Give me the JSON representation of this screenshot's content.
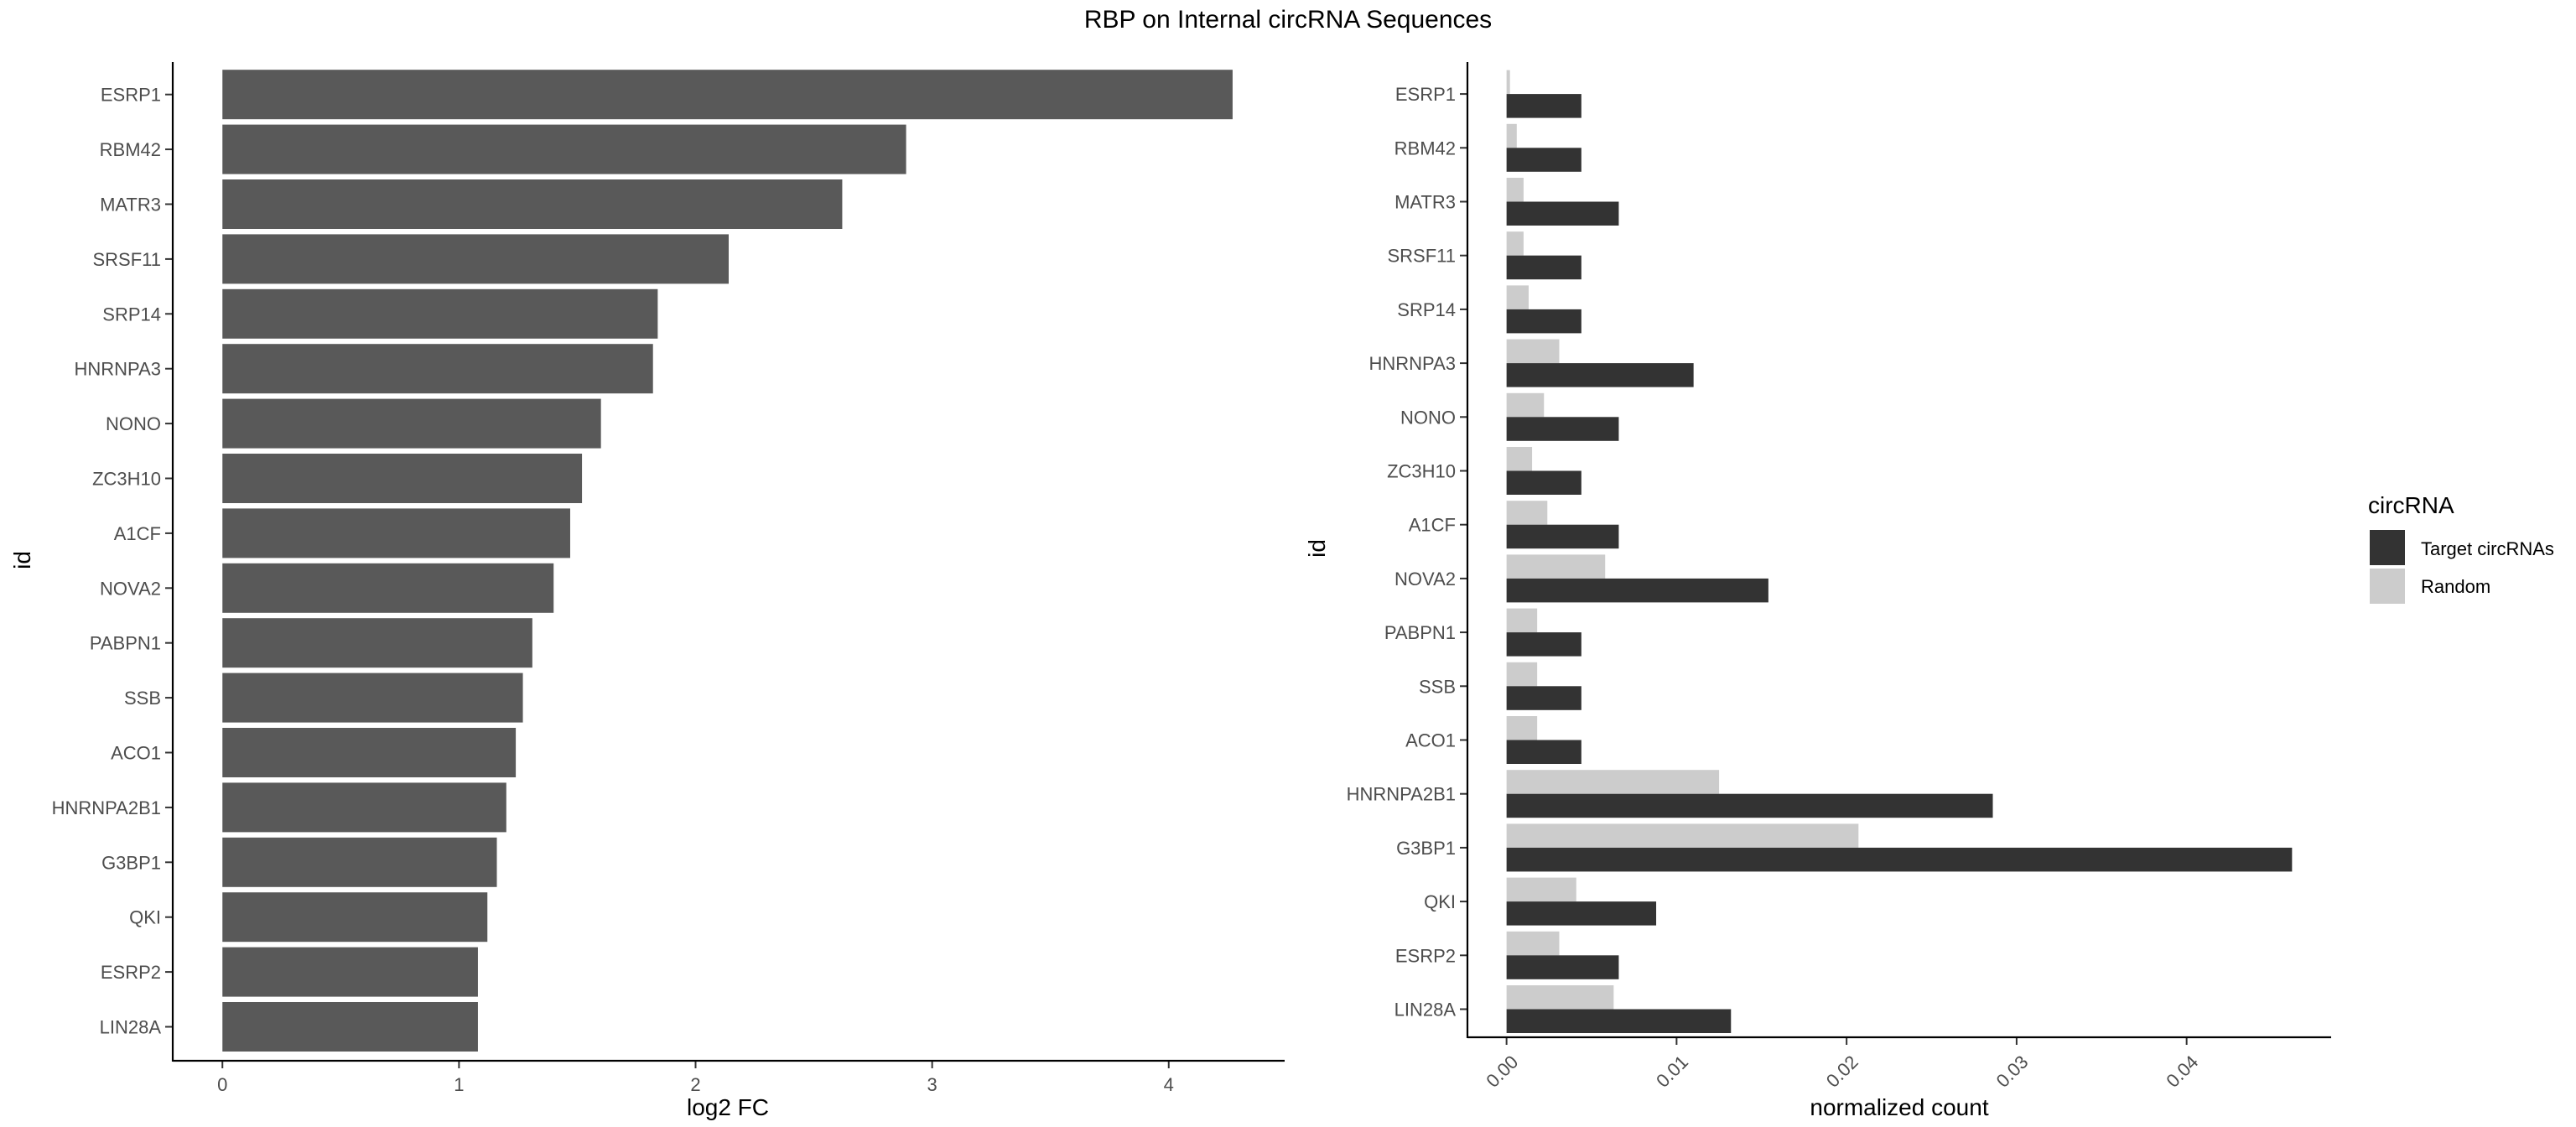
{
  "title": "RBP on Internal circRNA Sequences",
  "chart_data": [
    {
      "type": "bar",
      "orientation": "horizontal",
      "categories": [
        "ESRP1",
        "RBM42",
        "MATR3",
        "SRSF11",
        "SRP14",
        "HNRNPA3",
        "NONO",
        "ZC3H10",
        "A1CF",
        "NOVA2",
        "PABPN1",
        "SSB",
        "ACO1",
        "HNRNPA2B1",
        "G3BP1",
        "QKI",
        "ESRP2",
        "LIN28A"
      ],
      "values": [
        4.27,
        2.89,
        2.62,
        2.14,
        1.84,
        1.82,
        1.6,
        1.52,
        1.47,
        1.4,
        1.31,
        1.27,
        1.24,
        1.2,
        1.16,
        1.12,
        1.08,
        1.08
      ],
      "xlabel": "log2 FC",
      "ylabel": "id",
      "xticks": [
        "0",
        "1",
        "2",
        "3",
        "4"
      ],
      "xlim": [
        -0.21,
        4.49
      ],
      "bar_color": "#595959",
      "grid": false
    },
    {
      "type": "bar",
      "orientation": "horizontal",
      "grouped": true,
      "categories": [
        "ESRP1",
        "RBM42",
        "MATR3",
        "SRSF11",
        "SRP14",
        "HNRNPA3",
        "NONO",
        "ZC3H10",
        "A1CF",
        "NOVA2",
        "PABPN1",
        "SSB",
        "ACO1",
        "HNRNPA2B1",
        "G3BP1",
        "QKI",
        "ESRP2",
        "LIN28A"
      ],
      "series": [
        {
          "name": "Target circRNAs",
          "color": "#333333",
          "values": [
            0.0044,
            0.0044,
            0.0066,
            0.0044,
            0.0044,
            0.011,
            0.0066,
            0.0044,
            0.0066,
            0.0154,
            0.0044,
            0.0044,
            0.0044,
            0.0286,
            0.0462,
            0.0088,
            0.0066,
            0.0132
          ]
        },
        {
          "name": "Random",
          "color": "#cccccc",
          "values": [
            0.0002,
            0.0006,
            0.001,
            0.001,
            0.0013,
            0.0031,
            0.0022,
            0.0015,
            0.0024,
            0.0058,
            0.0018,
            0.0018,
            0.0018,
            0.0125,
            0.0207,
            0.0041,
            0.0031,
            0.0063
          ]
        }
      ],
      "xlabel": "normalized count",
      "ylabel": "id",
      "xticks": [
        "0.00",
        "0.01",
        "0.02",
        "0.03",
        "0.04"
      ],
      "xlim": [
        -0.0023,
        0.0485
      ],
      "legend": {
        "title": "circRNA",
        "position": "right"
      },
      "grid": false
    }
  ]
}
